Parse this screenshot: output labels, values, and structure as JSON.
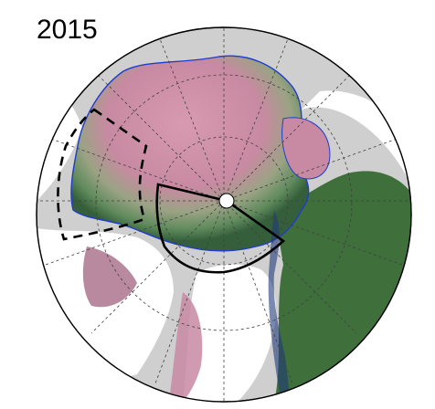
{
  "figure": {
    "year": "2015"
  },
  "colors": {
    "background": "#cfcfcf",
    "land": "#ffffff",
    "ice_high": "#cf8fa6",
    "ice_mid": "#7ca273",
    "open_water": "#3f6f3a",
    "ice_edge": "#1f3dcc",
    "grid": "#404040",
    "boundary": "#000000"
  },
  "map": {
    "projection": "north-polar-stereographic",
    "graticule": "dashed",
    "regions_marked": [
      "solid-outline-sector",
      "dashed-outline-sector"
    ]
  }
}
